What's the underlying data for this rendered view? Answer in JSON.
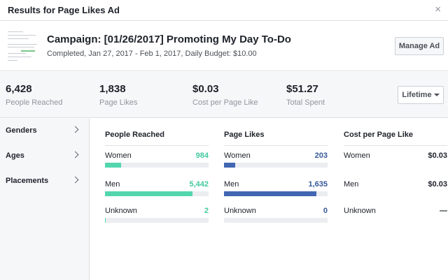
{
  "dialog": {
    "title": "Results for Page Likes Ad",
    "close_icon": "×"
  },
  "campaign": {
    "name": "Campaign: [01/26/2017] Promoting My Day To-Do",
    "meta": "Completed, Jan 27, 2017 - Feb 1, 2017, Daily Budget: $10.00",
    "manage_label": "Manage Ad"
  },
  "stats": [
    {
      "value": "6,428",
      "label": "People Reached"
    },
    {
      "value": "1,838",
      "label": "Page Likes"
    },
    {
      "value": "$0.03",
      "label": "Cost per Page Like"
    },
    {
      "value": "$51.27",
      "label": "Total Spent"
    }
  ],
  "range": {
    "label": "Lifetime"
  },
  "sidebar": [
    {
      "label": "Genders"
    },
    {
      "label": "Ages"
    },
    {
      "label": "Placements"
    }
  ],
  "breakdown": {
    "reached": {
      "title": "People Reached",
      "rows": [
        {
          "label": "Women",
          "value": "984",
          "share": 0.153
        },
        {
          "label": "Men",
          "value": "5,442",
          "share": 0.847
        },
        {
          "label": "Unknown",
          "value": "2",
          "share": 0.0003
        }
      ]
    },
    "likes": {
      "title": "Page Likes",
      "rows": [
        {
          "label": "Women",
          "value": "203",
          "share": 0.11
        },
        {
          "label": "Men",
          "value": "1,635",
          "share": 0.89
        },
        {
          "label": "Unknown",
          "value": "0",
          "share": 0
        }
      ]
    },
    "cost": {
      "title": "Cost per Page Like",
      "rows": [
        {
          "label": "Women",
          "value": "$0.03"
        },
        {
          "label": "Men",
          "value": "$0.03"
        },
        {
          "label": "Unknown",
          "value": "—"
        }
      ]
    }
  },
  "colors": {
    "reached": "#53d6ad",
    "likes": "#4267b2"
  }
}
